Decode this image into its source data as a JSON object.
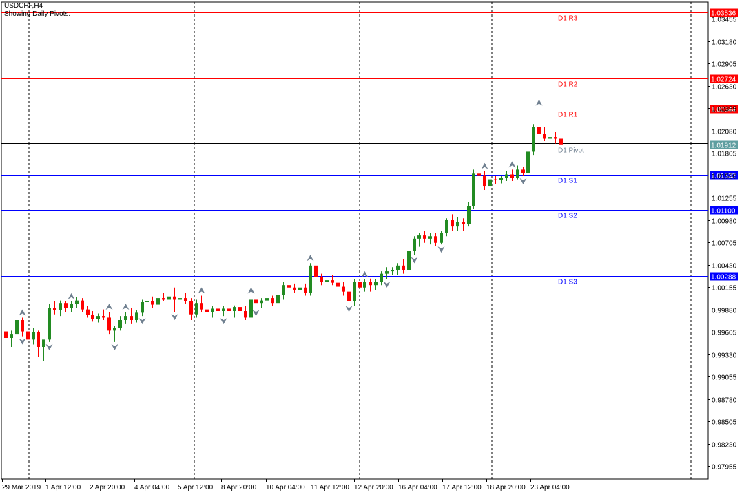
{
  "header": {
    "title": "USDCHF,H4",
    "subtitle": "Showing Daily Pivots."
  },
  "colors": {
    "background": "#ffffff",
    "up_candle": "#228b22",
    "down_candle": "#ff0000",
    "resistance_line": "#ff0000",
    "support_line": "#0000ff",
    "pivot_line": "#708090",
    "pivot_label_bg": "#5f9ea0",
    "bid_line": "#000000",
    "fractal": "#708090"
  },
  "chart_data": {
    "type": "candlestick",
    "ylim": [
      0.97795,
      1.0366
    ],
    "y_ticks": [
      "1.03455",
      "1.03180",
      "1.02905",
      "1.02630",
      "1.02355",
      "1.02080",
      "1.01805",
      "1.01530",
      "1.01255",
      "1.00980",
      "1.00705",
      "1.00430",
      "1.00155",
      "0.99880",
      "0.99605",
      "0.99330",
      "0.99055",
      "0.98780",
      "0.98505",
      "0.98230",
      "0.97955"
    ],
    "x_ticks": [
      "29 Mar 2019",
      "1 Apr 12:00",
      "2 Apr 20:00",
      "4 Apr 04:00",
      "5 Apr 12:00",
      "8 Apr 20:00",
      "10 Apr 04:00",
      "11 Apr 12:00",
      "12 Apr 20:00",
      "16 Apr 04:00",
      "17 Apr 12:00",
      "18 Apr 20:00",
      "23 Apr 04:00"
    ],
    "period_separators": [
      "1 Apr",
      "5 Apr",
      "12 Apr",
      "18 Apr",
      "25 Apr"
    ],
    "pivot_levels": [
      {
        "name": "D1 R3",
        "value": "1.03536",
        "kind": "resistance"
      },
      {
        "name": "D1 R2",
        "value": "1.02724",
        "kind": "resistance"
      },
      {
        "name": "D1 R1",
        "value": "1.02344",
        "kind": "resistance"
      },
      {
        "name": "D1 Pivot",
        "value": "1.01912",
        "kind": "pivot"
      },
      {
        "name": "D1 S1",
        "value": "1.01532",
        "kind": "support"
      },
      {
        "name": "D1 S2",
        "value": "1.01100",
        "kind": "support"
      },
      {
        "name": "D1 S3",
        "value": "1.00288",
        "kind": "support"
      }
    ],
    "current_price": "1.01912",
    "candles": [
      [
        0.9961,
        0.9972,
        0.9948,
        0.9953
      ],
      [
        0.9953,
        0.9962,
        0.9942,
        0.9958
      ],
      [
        0.9958,
        0.9985,
        0.995,
        0.9975
      ],
      [
        0.9975,
        0.9978,
        0.9955,
        0.9961
      ],
      [
        0.9961,
        0.9968,
        0.9946,
        0.9951
      ],
      [
        0.9951,
        0.9965,
        0.9945,
        0.996
      ],
      [
        0.996,
        0.9962,
        0.993,
        0.9942
      ],
      [
        0.9942,
        0.9948,
        0.9925,
        0.9951
      ],
      [
        0.9951,
        0.9995,
        0.9948,
        0.999
      ],
      [
        0.999,
        0.9998,
        0.9982,
        0.9987
      ],
      [
        0.9987,
        0.9999,
        0.998,
        0.9996
      ],
      [
        0.9996,
        0.9998,
        0.9985,
        0.999
      ],
      [
        0.999,
        0.9998,
        0.9985,
        0.9995
      ],
      [
        0.9995,
        1.0003,
        0.999,
        0.9999
      ],
      [
        0.9999,
        1.0002,
        0.9985,
        0.9988
      ],
      [
        0.9988,
        0.9992,
        0.9978,
        0.9981
      ],
      [
        0.9981,
        0.9986,
        0.9973,
        0.9976
      ],
      [
        0.9976,
        0.9983,
        0.9972,
        0.998
      ],
      [
        0.998,
        0.9988,
        0.9975,
        0.9978
      ],
      [
        0.9978,
        0.9985,
        0.9958,
        0.9962
      ],
      [
        0.9962,
        0.9968,
        0.9948,
        0.9965
      ],
      [
        0.9965,
        0.998,
        0.9962,
        0.9975
      ],
      [
        0.9975,
        0.9985,
        0.997,
        0.998
      ],
      [
        0.998,
        0.999,
        0.997,
        0.9975
      ],
      [
        0.9975,
        0.9987,
        0.9972,
        0.9984
      ],
      [
        0.9984,
        1.0,
        0.998,
        0.9997
      ],
      [
        0.9997,
        1.0002,
        0.999,
        0.9998
      ],
      [
        0.9998,
        1.0004,
        0.999,
        0.9994
      ],
      [
        0.9994,
        1.0005,
        0.999,
        1.0002
      ],
      [
        1.0002,
        1.0008,
        0.9998,
        1.0
      ],
      [
        1.0,
        1.0008,
        0.9995,
        1.0004
      ],
      [
        1.0004,
        1.0015,
        0.9985,
        1.0
      ],
      [
        1.0,
        1.0006,
        0.9998,
        1.0002
      ],
      [
        1.0002,
        1.0008,
        0.9995,
        0.9998
      ],
      [
        0.9998,
        1.0002,
        0.9975,
        0.9982
      ],
      [
        0.9982,
        1.0,
        0.9978,
        0.9996
      ],
      [
        0.9996,
        1.0005,
        0.9985,
        0.9988
      ],
      [
        0.9988,
        0.9995,
        0.997,
        0.9985
      ],
      [
        0.9985,
        0.9992,
        0.9978,
        0.9989
      ],
      [
        0.9989,
        0.9995,
        0.9983,
        0.9986
      ],
      [
        0.9986,
        0.9992,
        0.998,
        0.9989
      ],
      [
        0.9989,
        0.9995,
        0.9982,
        0.9986
      ],
      [
        0.9986,
        0.9993,
        0.9978,
        0.9991
      ],
      [
        0.9991,
        0.9998,
        0.9982,
        0.9986
      ],
      [
        0.9986,
        0.9992,
        0.9975,
        0.9978
      ],
      [
        0.9978,
        1.0005,
        0.9975,
        1.0
      ],
      [
        1.0,
        1.0008,
        0.999,
        0.9996
      ],
      [
        0.9996,
        1.0002,
        0.999,
        0.9999
      ],
      [
        0.9999,
        1.0005,
        0.9995,
        1.0002
      ],
      [
        1.0002,
        1.0005,
        0.9992,
        0.9996
      ],
      [
        0.9996,
        1.001,
        0.9985,
        1.0006
      ],
      [
        1.0006,
        1.0022,
        1.0,
        1.0018
      ],
      [
        1.0018,
        1.0022,
        1.001,
        1.0015
      ],
      [
        1.0015,
        1.002,
        1.0008,
        1.0012
      ],
      [
        1.0012,
        1.0018,
        1.0005,
        1.0015
      ],
      [
        1.0015,
        1.002,
        1.0005,
        1.0008
      ],
      [
        1.0008,
        1.0045,
        1.0005,
        1.0042
      ],
      [
        1.0042,
        1.0048,
        1.0025,
        1.0028
      ],
      [
        1.0028,
        1.0032,
        1.0018,
        1.0022
      ],
      [
        1.0022,
        1.0026,
        1.0015,
        1.0024
      ],
      [
        1.0024,
        1.003,
        1.0018,
        1.0021
      ],
      [
        1.0021,
        1.0026,
        1.0012,
        1.0016
      ],
      [
        1.0016,
        1.0022,
        1.0005,
        1.001
      ],
      [
        1.001,
        1.0015,
        0.9995,
        0.9998
      ],
      [
        0.9998,
        1.0025,
        0.9992,
        1.0022
      ],
      [
        1.0022,
        1.0028,
        1.0012,
        1.0015
      ],
      [
        1.0015,
        1.0025,
        1.001,
        1.0022
      ],
      [
        1.0022,
        1.0026,
        1.001,
        1.0018
      ],
      [
        1.0018,
        1.0025,
        1.0012,
        1.0022
      ],
      [
        1.0022,
        1.0035,
        1.0018,
        1.0032
      ],
      [
        1.0032,
        1.004,
        1.0025,
        1.0035
      ],
      [
        1.0035,
        1.004,
        1.003,
        1.0036
      ],
      [
        1.0036,
        1.0045,
        1.003,
        1.0042
      ],
      [
        1.0042,
        1.005,
        1.0032,
        1.0036
      ],
      [
        1.0036,
        1.0065,
        1.0033,
        1.006
      ],
      [
        1.006,
        1.0078,
        1.0055,
        1.0075
      ],
      [
        1.0075,
        1.0082,
        1.0065,
        1.0079
      ],
      [
        1.0079,
        1.0085,
        1.007,
        1.0075
      ],
      [
        1.0075,
        1.0082,
        1.0068,
        1.0078
      ],
      [
        1.0078,
        1.0082,
        1.0066,
        1.007
      ],
      [
        1.007,
        1.0085,
        1.0068,
        1.0082
      ],
      [
        1.0082,
        1.01,
        1.0078,
        1.0098
      ],
      [
        1.0098,
        1.0105,
        1.0085,
        1.009
      ],
      [
        1.009,
        1.0102,
        1.0085,
        1.0096
      ],
      [
        1.0096,
        1.01,
        1.0085,
        1.0093
      ],
      [
        1.0093,
        1.012,
        1.009,
        1.0115
      ],
      [
        1.0115,
        1.016,
        1.0112,
        1.0155
      ],
      [
        1.0155,
        1.0165,
        1.0145,
        1.0153
      ],
      [
        1.0153,
        1.0158,
        1.0135,
        1.014
      ],
      [
        1.014,
        1.0152,
        1.0138,
        1.0148
      ],
      [
        1.0148,
        1.0152,
        1.0142,
        1.0147
      ],
      [
        1.0147,
        1.0152,
        1.0143,
        1.015
      ],
      [
        1.015,
        1.0158,
        1.0146,
        1.0154
      ],
      [
        1.0154,
        1.016,
        1.0146,
        1.015
      ],
      [
        1.015,
        1.0165,
        1.0148,
        1.016
      ],
      [
        1.016,
        1.0163,
        1.0152,
        1.0156
      ],
      [
        1.0156,
        1.0185,
        1.0154,
        1.0182
      ],
      [
        1.0182,
        1.0216,
        1.0178,
        1.0212
      ],
      [
        1.0212,
        1.0236,
        1.0202,
        1.0204
      ],
      [
        1.0204,
        1.0212,
        1.0195,
        1.0198
      ],
      [
        1.0198,
        1.0207,
        1.0192,
        1.02
      ],
      [
        1.02,
        1.0206,
        1.0192,
        1.0198
      ],
      [
        1.0198,
        1.02,
        1.0188,
        1.0191
      ]
    ],
    "fractals_up": [
      3,
      12,
      19,
      22,
      36,
      45,
      56,
      66,
      88,
      93,
      98
    ],
    "fractals_down": [
      3,
      8,
      20,
      25,
      31,
      40,
      46,
      63,
      70,
      75,
      80,
      95
    ]
  }
}
